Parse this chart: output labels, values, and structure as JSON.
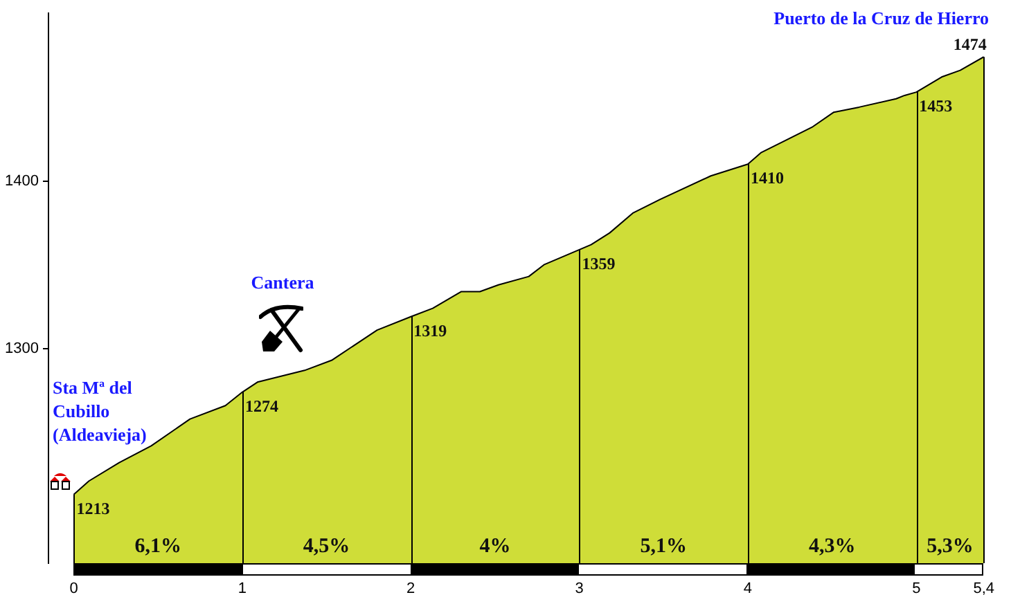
{
  "chart_data": {
    "type": "area",
    "x": [
      0,
      0.09,
      0.27,
      0.46,
      0.69,
      0.9,
      1,
      1.09,
      1.37,
      1.53,
      1.8,
      2,
      2.13,
      2.3,
      2.41,
      2.52,
      2.7,
      2.79,
      3,
      3.07,
      3.18,
      3.32,
      3.48,
      3.78,
      4,
      4.08,
      4.22,
      4.38,
      4.51,
      4.66,
      4.88,
      4.93,
      5,
      5.15,
      5.26,
      5.4
    ],
    "values": [
      1213,
      1221,
      1232,
      1242,
      1258,
      1266,
      1274,
      1280,
      1287,
      1293,
      1311,
      1319,
      1324,
      1334,
      1334,
      1338,
      1343,
      1350,
      1359,
      1362,
      1369,
      1381,
      1389,
      1403,
      1410,
      1417,
      1424,
      1432,
      1441,
      1444,
      1449,
      1451,
      1453,
      1462,
      1466,
      1474
    ],
    "value_labels": [
      "1213",
      null,
      null,
      null,
      null,
      null,
      "1274",
      null,
      null,
      null,
      null,
      "1319",
      null,
      null,
      null,
      null,
      null,
      null,
      "1359",
      null,
      null,
      null,
      null,
      null,
      "1410",
      null,
      null,
      null,
      null,
      null,
      null,
      null,
      "1453",
      null,
      null,
      "1474"
    ],
    "color": "#cfdd38",
    "xlim": [
      -0.15,
      5.4
    ],
    "ylim": [
      1172,
      1500
    ],
    "xticks": [
      0,
      1,
      2,
      3,
      4,
      5,
      {
        "value": 5.4,
        "label": "5,4"
      }
    ],
    "yticks": [
      1300,
      1400
    ],
    "marker": "none",
    "annotations": [
      "Sta Mª del\nCubillo\n(Aldeavieja)",
      "Cantera",
      "Puerto de la Cruz de Hierro",
      "6,1%",
      "4,5%",
      "4%",
      "5,1%",
      "4,3%",
      "5,3%"
    ]
  }
}
